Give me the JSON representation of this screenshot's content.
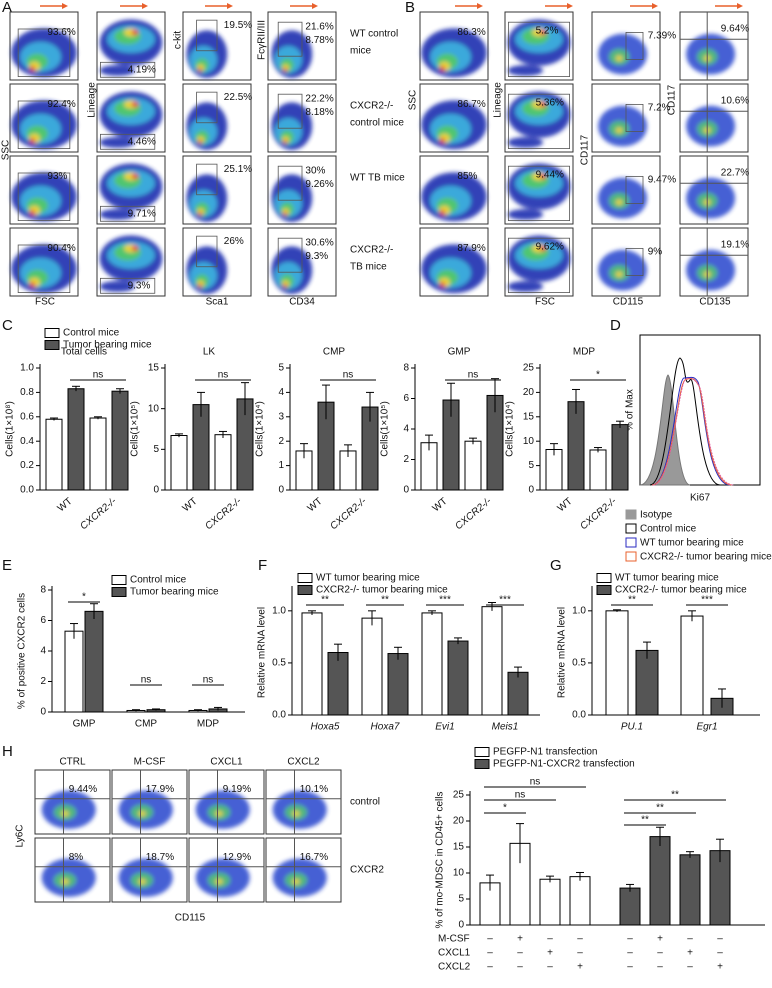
{
  "panel_labels": [
    "A",
    "B",
    "C",
    "D",
    "E",
    "F",
    "G",
    "H"
  ],
  "panel_a": {
    "y_labels": [
      "SSC",
      "Lineage",
      "c-kit",
      "FcγRII/III"
    ],
    "x_labels": [
      "FSC",
      "Sca1",
      "CD34"
    ],
    "rows": [
      {
        "gates": [
          [
            "93.6%"
          ],
          [
            "4.19%"
          ],
          [
            "19.5%"
          ],
          [
            "21.6%",
            "8.78%"
          ]
        ],
        "group": [
          "WT control",
          "mice"
        ]
      },
      {
        "gates": [
          [
            "92.4%"
          ],
          [
            "4.46%"
          ],
          [
            "22.5%"
          ],
          [
            "22.2%",
            "8.18%"
          ]
        ],
        "group": [
          "CXCR2-/-",
          "control mice"
        ]
      },
      {
        "gates": [
          [
            "93%"
          ],
          [
            "9.71%"
          ],
          [
            "25.1%"
          ],
          [
            "30%",
            "9.26%"
          ]
        ],
        "group": [
          "WT TB mice"
        ]
      },
      {
        "gates": [
          [
            "90.4%"
          ],
          [
            "9.3%"
          ],
          [
            "26%"
          ],
          [
            "30.6%",
            "9.3%"
          ]
        ],
        "group": [
          "CXCR2-/-",
          "TB mice"
        ]
      }
    ]
  },
  "panel_b": {
    "y_labels": [
      "SSC",
      "Lineage",
      "CD117",
      "CD117"
    ],
    "x_labels": [
      "FSC",
      "CD115",
      "CD135"
    ],
    "rows": [
      {
        "gates": [
          "86.3%",
          "5.2%",
          "7.39%",
          "9.64%"
        ]
      },
      {
        "gates": [
          "86.7%",
          "5.36%",
          "7.2%",
          "10.6%"
        ]
      },
      {
        "gates": [
          "85%",
          "9.44%",
          "9.47%",
          "22.7%"
        ]
      },
      {
        "gates": [
          "87.9%",
          "9.62%",
          "9%",
          "19.1%"
        ]
      }
    ]
  },
  "panel_d": {
    "y_label": "% of Max",
    "x_label": "Ki67",
    "legend": [
      {
        "name": "Isotype",
        "color": "#999999"
      },
      {
        "name": "Control mice",
        "color": "#000000"
      },
      {
        "name": "WT tumor bearing mice",
        "color": "#2a2ac0"
      },
      {
        "name": "CXCR2-/- tumor bearing mice",
        "color": "#e8602c"
      }
    ]
  },
  "panel_h": {
    "columns": [
      "CTRL",
      "M-CSF",
      "CXCL1",
      "CXCL2"
    ],
    "rows": [
      "control",
      "CXCR2"
    ],
    "y_label": "Ly6C",
    "x_label": "CD115",
    "gates": [
      [
        "9.44%",
        "17.9%",
        "9.19%",
        "10.1%"
      ],
      [
        "8%",
        "18.7%",
        "12.9%",
        "16.7%"
      ]
    ]
  },
  "chart_data": [
    {
      "type": "bar",
      "title": "Total cellls",
      "y_label": "Cells(1×10⁸)",
      "categories": [
        "WT",
        "CXCR2-/-"
      ],
      "series": [
        {
          "name": "Control mice",
          "color": "#ffffff",
          "values": [
            0.58,
            0.59
          ],
          "errors": [
            0.01,
            0.01
          ]
        },
        {
          "name": "Tumor bearing mice",
          "color": "#555555",
          "values": [
            0.83,
            0.81
          ],
          "errors": [
            0.02,
            0.02
          ]
        }
      ],
      "ylim": [
        0,
        1
      ],
      "yticks": [
        {
          "value": 0,
          "label": "0.0"
        },
        0.2,
        0.4,
        0.6,
        0.8,
        {
          "value": 1,
          "label": "1.0"
        }
      ],
      "annotations": [
        "ns"
      ]
    },
    {
      "type": "bar",
      "title": "LK",
      "y_label": "Cells(1×10⁵)",
      "categories": [
        "WT",
        "CXCR2-/-"
      ],
      "series": [
        {
          "color": "#ffffff",
          "values": [
            6.7,
            6.8
          ],
          "errors": [
            0.2,
            0.4
          ]
        },
        {
          "color": "#555555",
          "values": [
            10.5,
            11.2
          ],
          "errors": [
            1.5,
            2
          ]
        }
      ],
      "ylim": [
        0,
        15
      ],
      "yticks": [
        0,
        5,
        10,
        15
      ],
      "annotations": [
        "ns"
      ]
    },
    {
      "type": "bar",
      "title": "CMP",
      "y_label": "Cells(1×10⁴)",
      "categories": [
        "WT",
        "CXCR2-/-"
      ],
      "series": [
        {
          "color": "#ffffff",
          "values": [
            1.6,
            1.6
          ],
          "errors": [
            0.3,
            0.25
          ]
        },
        {
          "color": "#555555",
          "values": [
            3.6,
            3.4
          ],
          "errors": [
            0.7,
            0.6
          ]
        }
      ],
      "ylim": [
        0,
        5
      ],
      "yticks": [
        0,
        1,
        2,
        3,
        4,
        5
      ],
      "annotations": [
        "ns"
      ]
    },
    {
      "type": "bar",
      "title": "GMP",
      "y_label": "Cells(1×10⁵)",
      "categories": [
        "WT",
        "CXCR2-/-"
      ],
      "series": [
        {
          "color": "#ffffff",
          "values": [
            3.1,
            3.2
          ],
          "errors": [
            0.5,
            0.2
          ]
        },
        {
          "color": "#555555",
          "values": [
            5.9,
            6.2
          ],
          "errors": [
            1.1,
            1.1
          ]
        }
      ],
      "ylim": [
        0,
        8
      ],
      "yticks": [
        0,
        2,
        4,
        6,
        8
      ],
      "annotations": [
        "ns"
      ]
    },
    {
      "type": "bar",
      "title": "MDP",
      "y_label": "Cells(1×10⁴)",
      "categories": [
        "WT",
        "CXCR2-/-"
      ],
      "series": [
        {
          "color": "#ffffff",
          "values": [
            8.3,
            8.2
          ],
          "errors": [
            1.2,
            0.5
          ]
        },
        {
          "color": "#555555",
          "values": [
            18.1,
            13.4
          ],
          "errors": [
            2.5,
            0.7
          ]
        }
      ],
      "ylim": [
        0,
        25
      ],
      "yticks": [
        0,
        5,
        10,
        15,
        20,
        25
      ],
      "annotations": [
        "*"
      ]
    },
    {
      "type": "bar",
      "y_label": "% of positive CXCR2 cells",
      "categories": [
        "GMP",
        "CMP",
        "MDP"
      ],
      "series": [
        {
          "name": "Control mice",
          "color": "#ffffff",
          "values": [
            5.3,
            0.1,
            0.1
          ],
          "errors": [
            0.5,
            0.05,
            0.05
          ]
        },
        {
          "name": "Tumor bearing mice",
          "color": "#555555",
          "values": [
            6.6,
            0.15,
            0.2
          ],
          "errors": [
            0.5,
            0.05,
            0.1
          ]
        }
      ],
      "ylim": [
        0,
        8
      ],
      "yticks": [
        0,
        2,
        4,
        6,
        8
      ],
      "annotations": [
        "*",
        "ns",
        "ns"
      ]
    },
    {
      "type": "bar",
      "y_label": "Relative mRNA level",
      "categories": [
        "Hoxa5",
        "Hoxa7",
        "Evi1",
        "Meis1"
      ],
      "series": [
        {
          "name": "WT tumor bearing mice",
          "color": "#ffffff",
          "values": [
            0.98,
            0.93,
            0.98,
            1.04
          ],
          "errors": [
            0.02,
            0.07,
            0.02,
            0.04
          ]
        },
        {
          "name": "CXCR2-/- tumor bearing mice",
          "color": "#555555",
          "values": [
            0.6,
            0.59,
            0.71,
            0.41
          ],
          "errors": [
            0.08,
            0.06,
            0.03,
            0.05
          ]
        }
      ],
      "ylim": [
        0,
        1.2
      ],
      "yticks": [
        {
          "value": 0,
          "label": "0.0"
        },
        0.5,
        {
          "value": 1,
          "label": "1.0"
        }
      ],
      "annotations": [
        "**",
        "**",
        "***",
        "***"
      ]
    },
    {
      "type": "bar",
      "y_label": "Relative mRNA level",
      "categories": [
        "PU.1",
        "Egr1"
      ],
      "series": [
        {
          "name": "WT tumor bearing mice",
          "color": "#ffffff",
          "values": [
            1,
            0.95
          ],
          "errors": [
            0.01,
            0.05
          ]
        },
        {
          "name": "CXCR2-/- tumor bearing mice",
          "color": "#555555",
          "values": [
            0.62,
            0.16
          ],
          "errors": [
            0.08,
            0.09
          ]
        }
      ],
      "ylim": [
        0,
        1.2
      ],
      "yticks": [
        {
          "value": 0,
          "label": "0.0"
        },
        0.5,
        {
          "value": 1,
          "label": "1.0"
        }
      ],
      "annotations": [
        "**",
        "***"
      ]
    },
    {
      "type": "bar",
      "y_label": "% of mo-MDSC in CD45+ cells",
      "series": [
        {
          "name": "PEGFP-N1 transfection",
          "color": "#ffffff",
          "values": [
            8.1,
            15.7,
            8.8,
            9.3
          ],
          "errors": [
            1.5,
            3.8,
            0.6,
            0.8
          ]
        },
        {
          "name": "PEGFP-N1-CXCR2 transfection",
          "color": "#555555",
          "values": [
            7.1,
            17,
            13.5,
            14.3
          ],
          "errors": [
            0.7,
            1.8,
            0.6,
            2.2
          ]
        }
      ],
      "ylim": [
        0,
        25
      ],
      "yticks": [
        0,
        5,
        10,
        15,
        20,
        25
      ],
      "annotations": [
        "ns",
        "ns",
        "*",
        "**",
        "**",
        "**"
      ],
      "conditions": [
        {
          "name": "M-CSF",
          "signs": [
            "–",
            "+",
            "–",
            "–",
            "–",
            "+",
            "–",
            "–"
          ]
        },
        {
          "name": "CXCL1",
          "signs": [
            "–",
            "–",
            "+",
            "–",
            "–",
            "–",
            "+",
            "–"
          ]
        },
        {
          "name": "CXCL2",
          "signs": [
            "–",
            "–",
            "–",
            "+",
            "–",
            "–",
            "–",
            "+"
          ]
        }
      ]
    }
  ]
}
